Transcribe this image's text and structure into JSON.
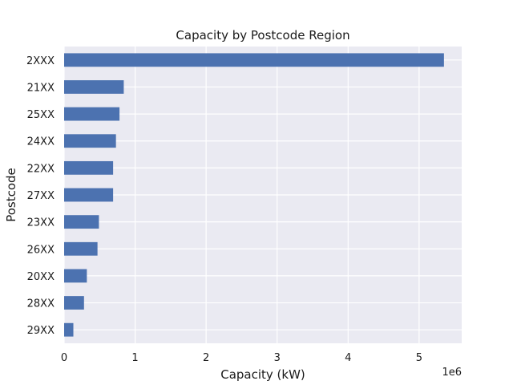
{
  "chart_data": {
    "type": "bar",
    "orientation": "horizontal",
    "title": "Capacity by Postcode Region",
    "xlabel": "Capacity (kW)",
    "ylabel": "Postcode",
    "x_offset_label": "1e6",
    "categories": [
      "2XXX",
      "21XX",
      "25XX",
      "24XX",
      "22XX",
      "27XX",
      "23XX",
      "26XX",
      "20XX",
      "28XX",
      "29XX"
    ],
    "values": [
      5350000,
      840000,
      780000,
      730000,
      690000,
      690000,
      490000,
      470000,
      320000,
      280000,
      130000
    ],
    "xlim": [
      0,
      5600000
    ],
    "x_ticks": [
      0,
      1000000,
      2000000,
      3000000,
      4000000,
      5000000
    ],
    "x_tick_labels": [
      "0",
      "1",
      "2",
      "3",
      "4",
      "5"
    ],
    "grid": true,
    "colors": {
      "bar": "#4c72b0",
      "plot_bg": "#eaeaf2",
      "grid": "#ffffff"
    }
  }
}
